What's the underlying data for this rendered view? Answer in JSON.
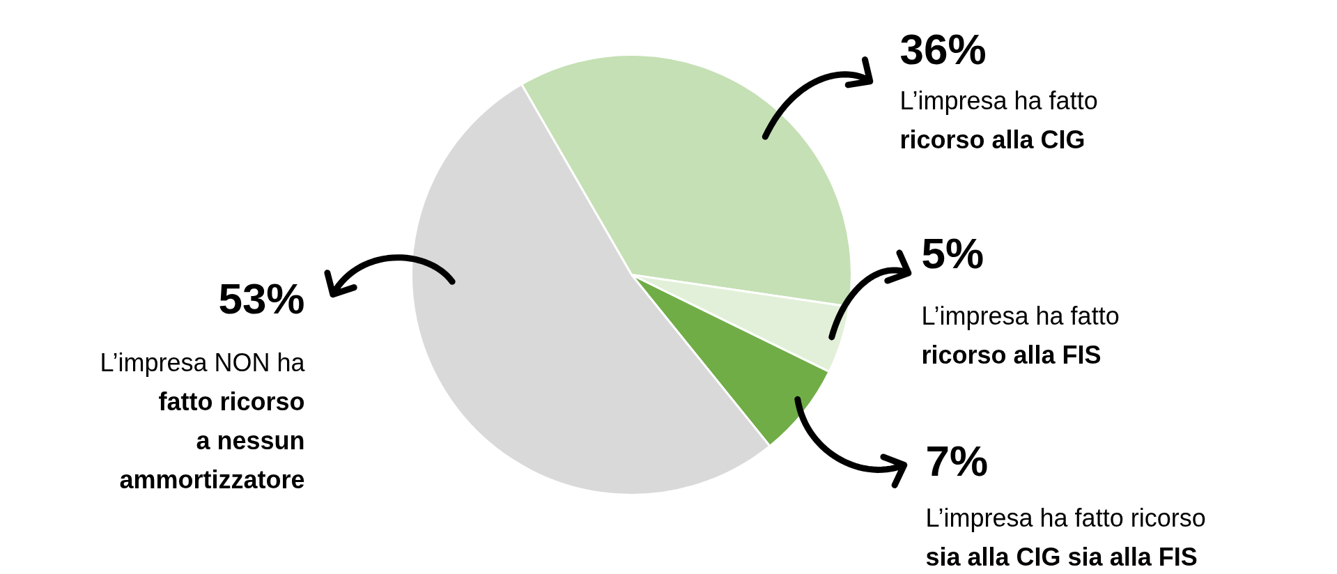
{
  "chart_data": {
    "type": "pie",
    "categories": [
      "L’impresa ha fatto\nricorso alla CIG",
      "L’impresa ha fatto\nricorso alla FIS",
      "L’impresa ha fatto ricorso\nsia alla CIG sia alla FIS",
      "L’impresa NON ha\nfatto ricorso\na nessun\nammortizzatore"
    ],
    "values": [
      36,
      5,
      7,
      53
    ],
    "value_labels": [
      "36%",
      "5%",
      "7%",
      "53%"
    ],
    "colors": [
      "#c5e0b4",
      "#e2f0d9",
      "#70ad47",
      "#d9d9d9"
    ]
  }
}
